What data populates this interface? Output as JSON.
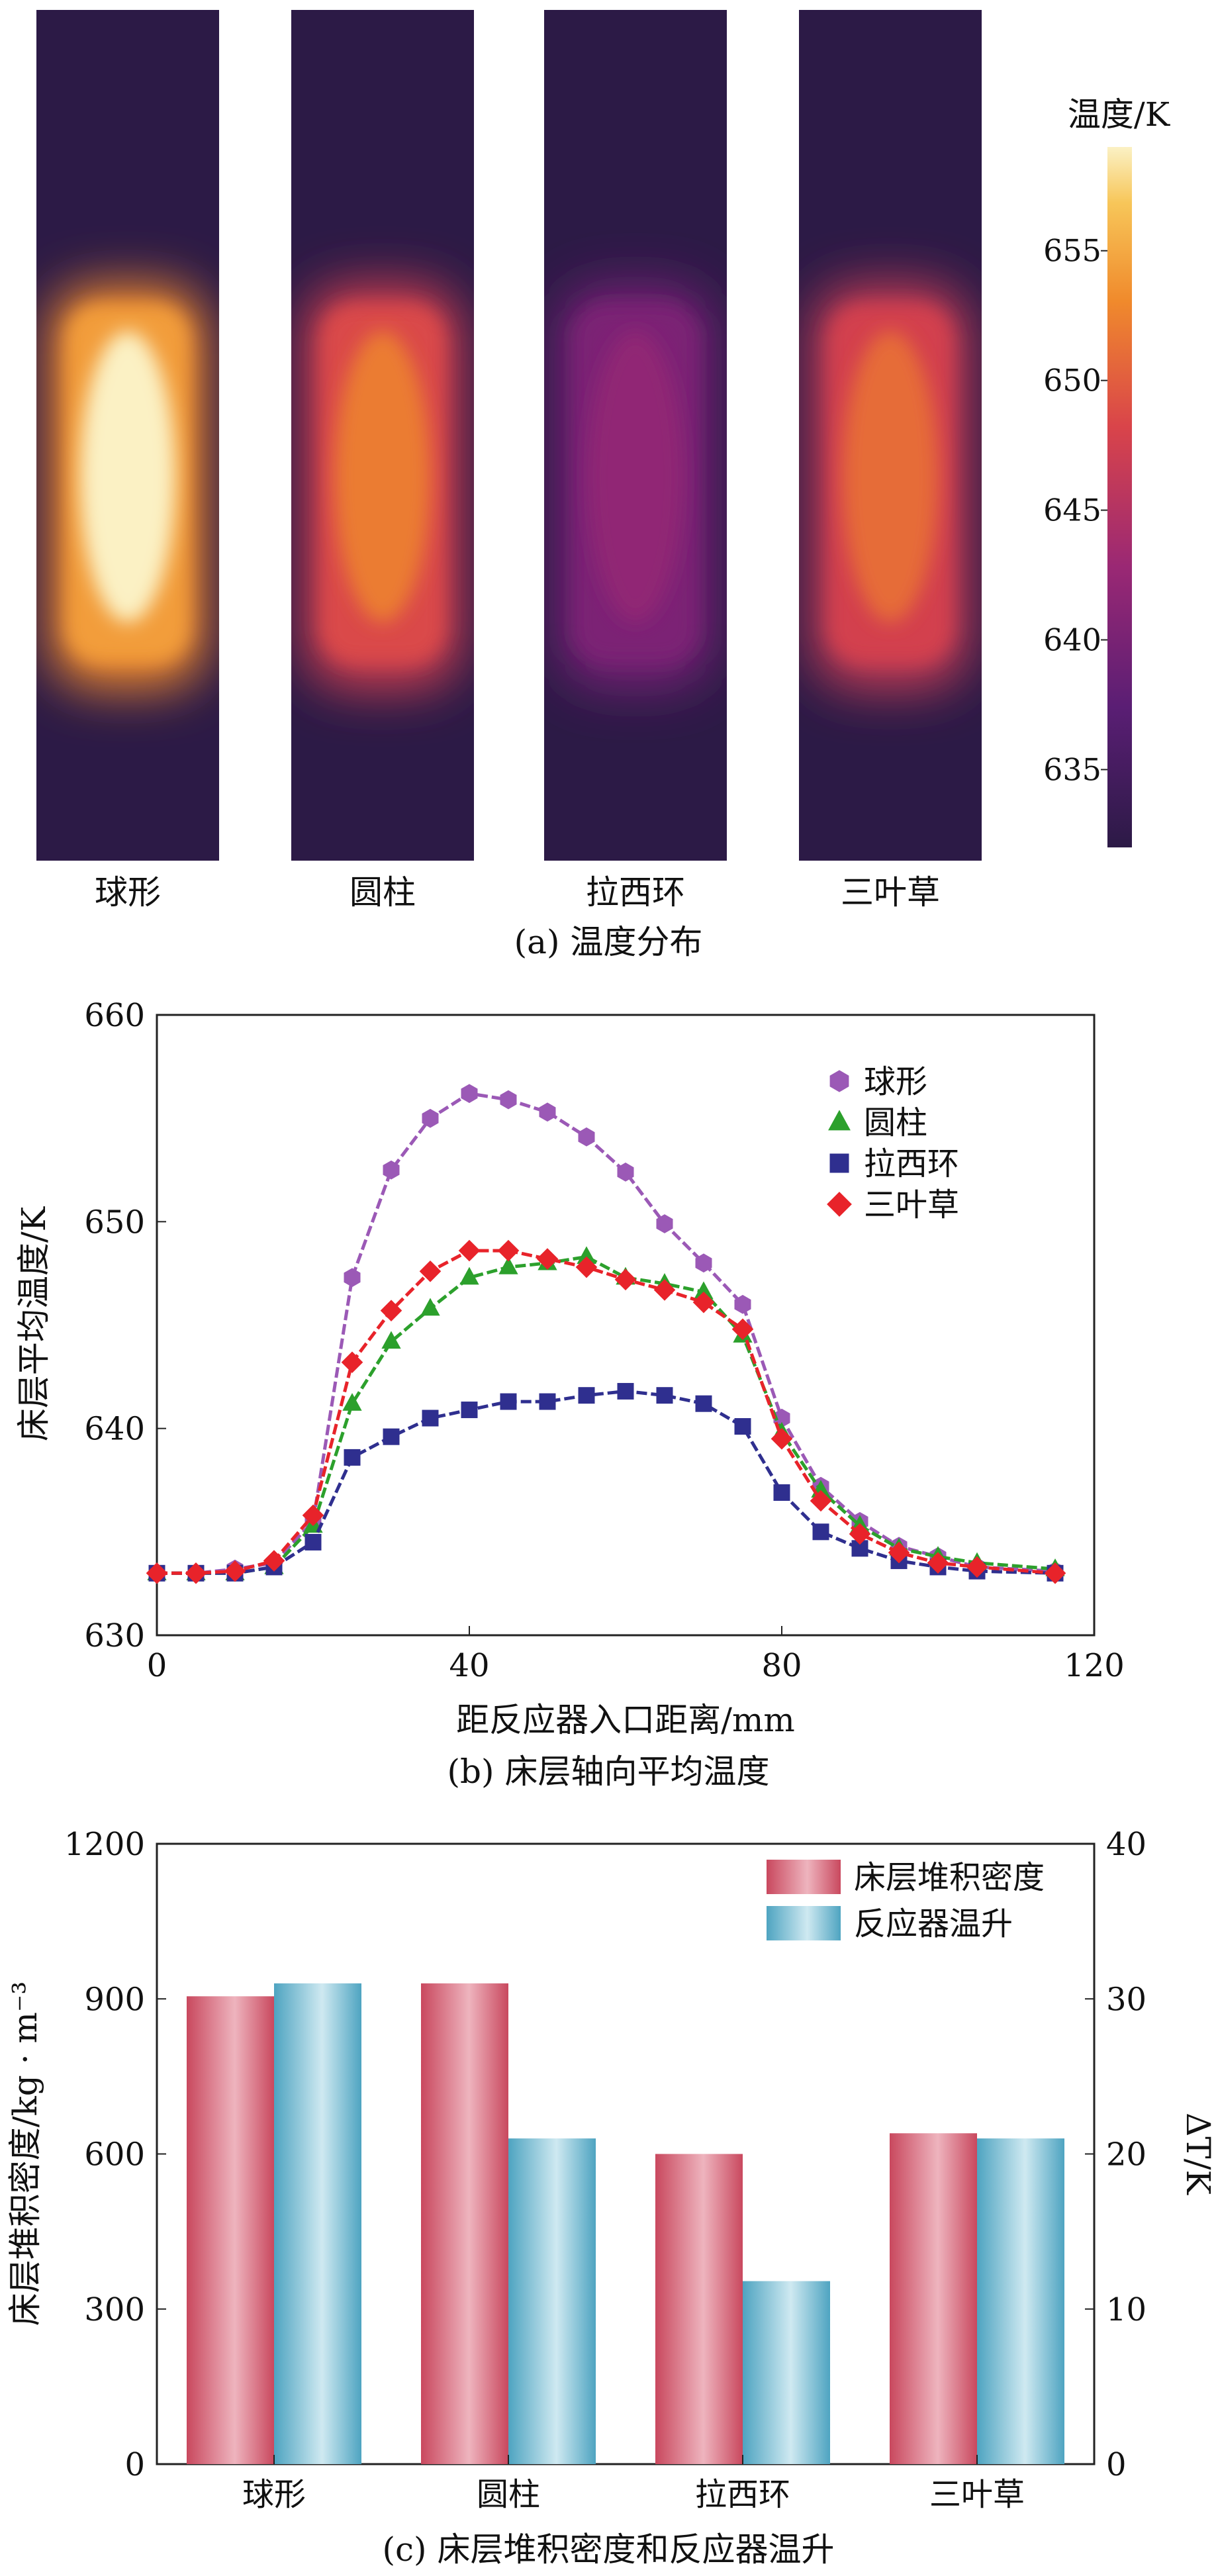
{
  "figure": {
    "panel_a_caption": "(a) 温度分布",
    "panel_b_caption": "(b) 床层轴向平均温度",
    "panel_c_caption": "(c) 床层堆积密度和反应器温升"
  },
  "colors": {
    "sphere": "#9b59b6",
    "cylinder": "#2ca02c",
    "raschig": "#2f2f8f",
    "trilobe": "#e8232a",
    "bar_density": "#d9707f",
    "bar_temp": "#7fc0d4"
  },
  "chart_data": [
    {
      "type": "heatmap",
      "title": "温度分布",
      "colorbar_title": "温度/K",
      "colorbar_ticks": [
        655,
        650,
        645,
        640,
        635
      ],
      "colorbar_range": [
        632,
        659
      ],
      "panels": [
        {
          "label": "球形",
          "core_temp": 659,
          "edge_temp": 632
        },
        {
          "label": "圆柱",
          "core_temp": 652,
          "edge_temp": 632
        },
        {
          "label": "拉西环",
          "core_temp": 642,
          "edge_temp": 632
        },
        {
          "label": "三叶草",
          "core_temp": 651,
          "edge_temp": 632
        }
      ]
    },
    {
      "type": "line",
      "xlabel": "距反应器入口距离/mm",
      "ylabel": "床层平均温度/K",
      "xlim": [
        0,
        120
      ],
      "ylim": [
        630,
        660
      ],
      "xticks": [
        0,
        40,
        80,
        120
      ],
      "yticks": [
        630,
        640,
        650,
        660
      ],
      "series": [
        {
          "name": "球形",
          "marker": "hexagon",
          "colorKey": "sphere",
          "x": [
            0,
            5,
            10,
            15,
            20,
            25,
            30,
            35,
            40,
            45,
            50,
            55,
            60,
            65,
            70,
            75,
            80,
            85,
            90,
            95,
            100,
            105,
            115
          ],
          "y": [
            633,
            633,
            633.2,
            633.5,
            635.5,
            647.3,
            652.5,
            655,
            656.2,
            655.9,
            655.3,
            654.1,
            652.4,
            649.9,
            648,
            646,
            640.5,
            637.2,
            635.5,
            634.3,
            633.8,
            633.3,
            633.1
          ]
        },
        {
          "name": "圆柱",
          "marker": "triangle",
          "colorKey": "cylinder",
          "x": [
            0,
            5,
            10,
            15,
            20,
            25,
            30,
            35,
            40,
            45,
            50,
            55,
            60,
            65,
            70,
            75,
            80,
            85,
            90,
            95,
            100,
            105,
            115
          ],
          "y": [
            633,
            633,
            633,
            633.3,
            635.3,
            641.2,
            644.2,
            645.8,
            647.3,
            647.8,
            648,
            648.3,
            647.3,
            647,
            646.6,
            644.5,
            639.8,
            637,
            635.3,
            634.2,
            633.8,
            633.5,
            633.2
          ]
        },
        {
          "name": "拉西环",
          "marker": "square",
          "colorKey": "raschig",
          "x": [
            0,
            5,
            10,
            15,
            20,
            25,
            30,
            35,
            40,
            45,
            50,
            55,
            60,
            65,
            70,
            75,
            80,
            85,
            90,
            95,
            100,
            105,
            115
          ],
          "y": [
            633,
            633,
            633,
            633.3,
            634.5,
            638.6,
            639.6,
            640.5,
            640.9,
            641.3,
            641.3,
            641.6,
            641.8,
            641.6,
            641.2,
            640.1,
            636.9,
            635,
            634.2,
            633.6,
            633.3,
            633.1,
            633
          ]
        },
        {
          "name": "三叶草",
          "marker": "diamond",
          "colorKey": "trilobe",
          "x": [
            0,
            5,
            10,
            15,
            20,
            25,
            30,
            35,
            40,
            45,
            50,
            55,
            60,
            65,
            70,
            75,
            80,
            85,
            90,
            95,
            100,
            105,
            115
          ],
          "y": [
            633,
            633,
            633.1,
            633.6,
            635.8,
            643.2,
            645.7,
            647.6,
            648.6,
            648.6,
            648.2,
            647.8,
            647.2,
            646.7,
            646.1,
            644.8,
            639.5,
            636.5,
            634.9,
            634,
            633.5,
            633.3,
            633
          ]
        }
      ]
    },
    {
      "type": "bar",
      "categories": [
        "球形",
        "圆柱",
        "拉西环",
        "三叶草"
      ],
      "ylabel_left": "床层堆积密度/kg · m⁻³",
      "ylabel_right": "ΔT/K",
      "ylim_left": [
        0,
        1200
      ],
      "ylim_right": [
        0,
        40
      ],
      "yticks_left": [
        0,
        300,
        600,
        900,
        1200
      ],
      "yticks_right": [
        0,
        10,
        20,
        30,
        40
      ],
      "series": [
        {
          "name": "床层堆积密度",
          "axis": "left",
          "colorKey": "bar_density",
          "values": [
            905,
            930,
            600,
            640
          ]
        },
        {
          "name": "反应器温升",
          "axis": "right",
          "colorKey": "bar_temp",
          "values": [
            31,
            21,
            11.8,
            21
          ]
        }
      ]
    }
  ]
}
